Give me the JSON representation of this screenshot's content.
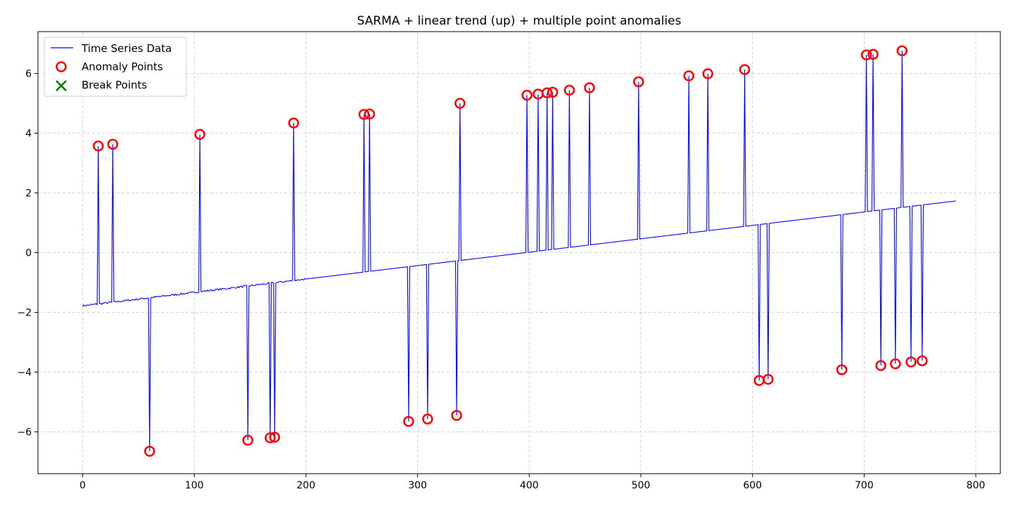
{
  "chart_data": {
    "type": "line",
    "title": "SARMA + linear trend (up) + multiple point anomalies",
    "xlabel": "",
    "ylabel": "",
    "xlim": [
      -40,
      822
    ],
    "ylim": [
      -7.4,
      7.4
    ],
    "x_ticks": [
      0,
      100,
      200,
      300,
      400,
      500,
      600,
      700,
      800
    ],
    "y_ticks": [
      -6,
      -4,
      -2,
      0,
      2,
      4,
      6
    ],
    "x_tick_labels": [
      "0",
      "100",
      "200",
      "300",
      "400",
      "500",
      "600",
      "700",
      "800"
    ],
    "y_tick_labels": [
      "−6",
      "−4",
      "−2",
      "0",
      "2",
      "4",
      "6"
    ],
    "grid": true,
    "legend_position": "top-left",
    "colors": {
      "line": "#0000ff",
      "anomaly": "#ff0000",
      "break": "#008000"
    },
    "series": [
      {
        "name": "Time Series Data",
        "kind": "line",
        "trend": {
          "x_start": 0,
          "y_start": -1.78,
          "x_end": 782,
          "y_end": 1.73,
          "noise_until_x": 200,
          "noise_amplitude": 0.03
        }
      },
      {
        "name": "Anomaly Points",
        "kind": "scatter",
        "marker": "circle",
        "points": [
          [
            14,
            3.57
          ],
          [
            27,
            3.63
          ],
          [
            60,
            -6.65
          ],
          [
            105,
            3.96
          ],
          [
            148,
            -6.28
          ],
          [
            168,
            -6.2
          ],
          [
            172,
            -6.18
          ],
          [
            189,
            4.34
          ],
          [
            252,
            4.63
          ],
          [
            257,
            4.64
          ],
          [
            292,
            -5.65
          ],
          [
            309,
            -5.57
          ],
          [
            335,
            -5.45
          ],
          [
            338,
            5.0
          ],
          [
            398,
            5.27
          ],
          [
            408,
            5.31
          ],
          [
            416,
            5.35
          ],
          [
            421,
            5.37
          ],
          [
            436,
            5.44
          ],
          [
            454,
            5.52
          ],
          [
            498,
            5.72
          ],
          [
            543,
            5.92
          ],
          [
            560,
            5.99
          ],
          [
            593,
            6.13
          ],
          [
            606,
            -4.28
          ],
          [
            614,
            -4.24
          ],
          [
            680,
            -3.92
          ],
          [
            702,
            6.62
          ],
          [
            708,
            6.64
          ],
          [
            715,
            -3.78
          ],
          [
            728,
            -3.72
          ],
          [
            734,
            6.76
          ],
          [
            742,
            -3.66
          ],
          [
            752,
            -3.62
          ]
        ]
      },
      {
        "name": "Break Points",
        "kind": "scatter",
        "marker": "x",
        "points": []
      }
    ]
  }
}
